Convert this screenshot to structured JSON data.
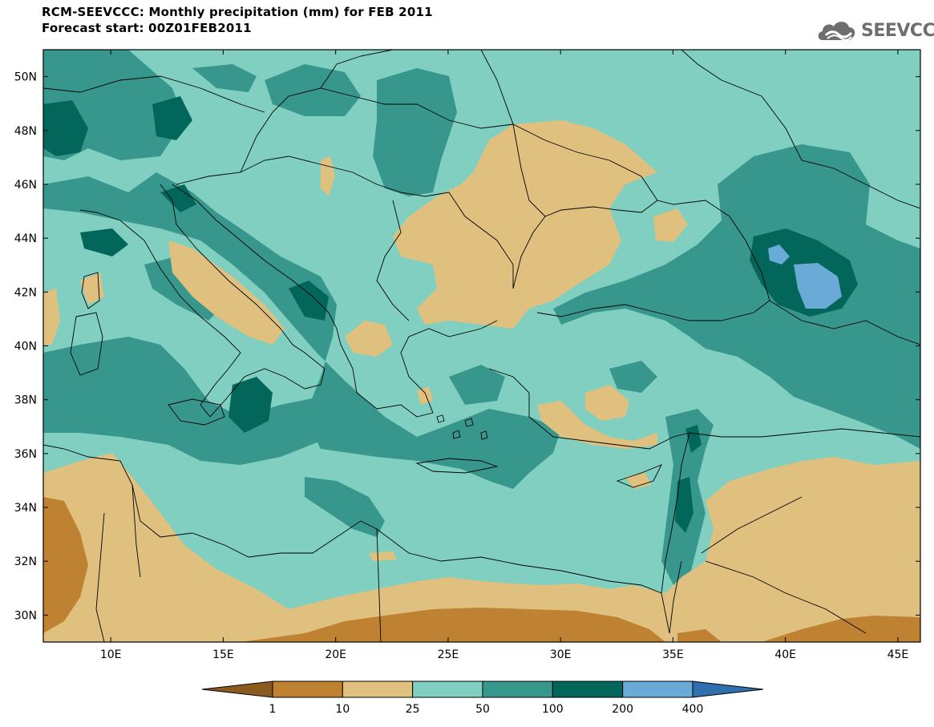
{
  "header": {
    "title": "RCM-SEEVCCC: Monthly precipitation (mm) for FEB 2011",
    "subtitle": "Forecast start: 00Z01FEB2011"
  },
  "logo": {
    "text": "SEEVCCC",
    "icon": "cloud-logo-icon"
  },
  "map_data": {
    "variable": "Monthly precipitation",
    "units": "mm",
    "lon_range": [
      7,
      46
    ],
    "lat_range": [
      29,
      51
    ],
    "x_ticks": [
      "10E",
      "15E",
      "20E",
      "25E",
      "30E",
      "35E",
      "40E",
      "45E"
    ],
    "y_ticks": [
      "30N",
      "32N",
      "34N",
      "36N",
      "38N",
      "40N",
      "42N",
      "44N",
      "46N",
      "48N",
      "50N"
    ]
  },
  "colorbar": {
    "labels": [
      "1",
      "10",
      "25",
      "50",
      "100",
      "200",
      "400"
    ],
    "colors": [
      "#8a5a1e",
      "#bf8232",
      "#dfc07e",
      "#80cfc0",
      "#38978c",
      "#03665a",
      "#6aaad6",
      "#2f6fae"
    ]
  }
}
